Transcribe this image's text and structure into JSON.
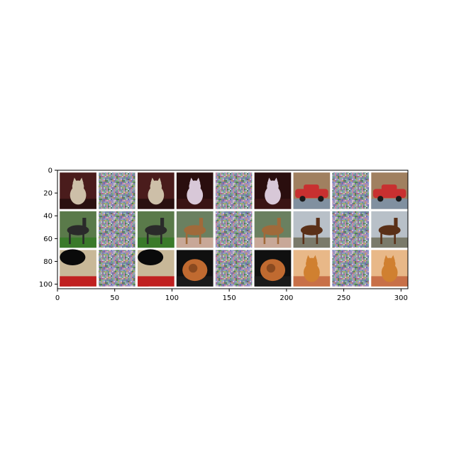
{
  "figure": {
    "type": "image-grid",
    "x_axis": {
      "range": [
        0,
        306
      ],
      "ticks": [
        0,
        50,
        100,
        150,
        200,
        250,
        300
      ],
      "tick_labels": [
        "0",
        "50",
        "100",
        "150",
        "200",
        "250",
        "300"
      ]
    },
    "y_axis": {
      "range": [
        0,
        104
      ],
      "inverted": true,
      "ticks": [
        0,
        20,
        40,
        60,
        80,
        100
      ],
      "tick_labels": [
        "0",
        "20",
        "40",
        "60",
        "80",
        "100"
      ]
    },
    "grid": false
  },
  "tiles": [
    {
      "row": 0,
      "col": 0,
      "kind": "photo",
      "subject": "cat",
      "bg": "#4a1c1c",
      "accent": "#cdbfa8",
      "ground": "#2a1010"
    },
    {
      "row": 0,
      "col": 1,
      "kind": "noise"
    },
    {
      "row": 0,
      "col": 2,
      "kind": "photo",
      "subject": "cat",
      "bg": "#4a1c1c",
      "accent": "#cdbfa8",
      "ground": "#2a1010"
    },
    {
      "row": 0,
      "col": 3,
      "kind": "photo",
      "subject": "cat",
      "bg": "#2a0e0e",
      "accent": "#d8c8d8",
      "ground": "#3a1414"
    },
    {
      "row": 0,
      "col": 4,
      "kind": "noise"
    },
    {
      "row": 0,
      "col": 5,
      "kind": "photo",
      "subject": "cat",
      "bg": "#2a0e0e",
      "accent": "#d8c8d8",
      "ground": "#3a1414"
    },
    {
      "row": 0,
      "col": 6,
      "kind": "photo",
      "subject": "car",
      "bg": "#a08060",
      "accent": "#c83030",
      "ground": "#8090a0"
    },
    {
      "row": 0,
      "col": 7,
      "kind": "noise"
    },
    {
      "row": 0,
      "col": 8,
      "kind": "photo",
      "subject": "car",
      "bg": "#a08060",
      "accent": "#c83030",
      "ground": "#8090a0"
    },
    {
      "row": 1,
      "col": 0,
      "kind": "photo",
      "subject": "horse",
      "bg": "#5a7a4a",
      "accent": "#2a2a2a",
      "ground": "#3a7a2a"
    },
    {
      "row": 1,
      "col": 1,
      "kind": "noise"
    },
    {
      "row": 1,
      "col": 2,
      "kind": "photo",
      "subject": "horse",
      "bg": "#5a7a4a",
      "accent": "#2a2a2a",
      "ground": "#3a7a2a"
    },
    {
      "row": 1,
      "col": 3,
      "kind": "photo",
      "subject": "horse",
      "bg": "#6a8060",
      "accent": "#a06a3a",
      "ground": "#c8a898"
    },
    {
      "row": 1,
      "col": 4,
      "kind": "noise"
    },
    {
      "row": 1,
      "col": 5,
      "kind": "photo",
      "subject": "horse",
      "bg": "#6a8060",
      "accent": "#a06a3a",
      "ground": "#c8a898"
    },
    {
      "row": 1,
      "col": 6,
      "kind": "photo",
      "subject": "horse",
      "bg": "#b8c0c8",
      "accent": "#5a3018",
      "ground": "#7a7a6a"
    },
    {
      "row": 1,
      "col": 7,
      "kind": "noise"
    },
    {
      "row": 1,
      "col": 8,
      "kind": "photo",
      "subject": "horse",
      "bg": "#b8c0c8",
      "accent": "#5a3018",
      "ground": "#7a7a6a"
    },
    {
      "row": 2,
      "col": 0,
      "kind": "photo",
      "subject": "blob",
      "bg": "#c8b898",
      "accent": "#0a0a0a",
      "ground": "#c02020"
    },
    {
      "row": 2,
      "col": 1,
      "kind": "noise"
    },
    {
      "row": 2,
      "col": 2,
      "kind": "photo",
      "subject": "blob",
      "bg": "#c8b898",
      "accent": "#0a0a0a",
      "ground": "#c02020"
    },
    {
      "row": 2,
      "col": 3,
      "kind": "photo",
      "subject": "curl",
      "bg": "#101010",
      "accent": "#c06a30",
      "ground": "#1a1a1a"
    },
    {
      "row": 2,
      "col": 4,
      "kind": "noise"
    },
    {
      "row": 2,
      "col": 5,
      "kind": "photo",
      "subject": "curl",
      "bg": "#101010",
      "accent": "#c06a30",
      "ground": "#1a1a1a"
    },
    {
      "row": 2,
      "col": 6,
      "kind": "photo",
      "subject": "cat",
      "bg": "#e8b888",
      "accent": "#d08030",
      "ground": "#c87048"
    },
    {
      "row": 2,
      "col": 7,
      "kind": "noise"
    },
    {
      "row": 2,
      "col": 8,
      "kind": "photo",
      "subject": "cat",
      "bg": "#e8b888",
      "accent": "#d08030",
      "ground": "#c87048"
    }
  ]
}
